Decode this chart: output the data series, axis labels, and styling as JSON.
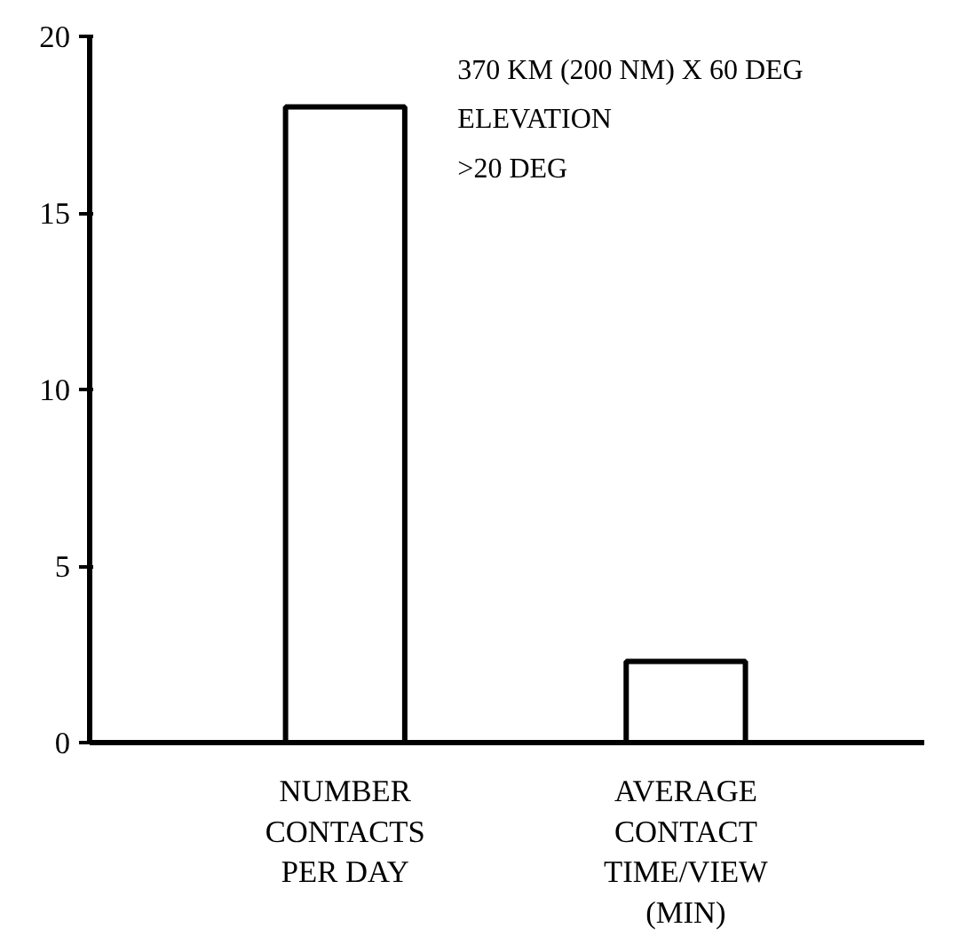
{
  "chart_data": {
    "type": "bar",
    "categories": [
      "NUMBER\nCONTACTS\nPER DAY",
      "AVERAGE\nCONTACT\nTIME/VIEW\n(MIN)"
    ],
    "values": [
      18,
      2.3
    ],
    "color": "#ffffff",
    "ylim": [
      0,
      20
    ],
    "yticks": [
      0,
      5,
      10,
      15,
      20
    ],
    "grid": false,
    "annotations": [
      "370 KM (200 NM) X 60 DEG",
      "ELEVATION",
      ">20 DEG"
    ]
  }
}
